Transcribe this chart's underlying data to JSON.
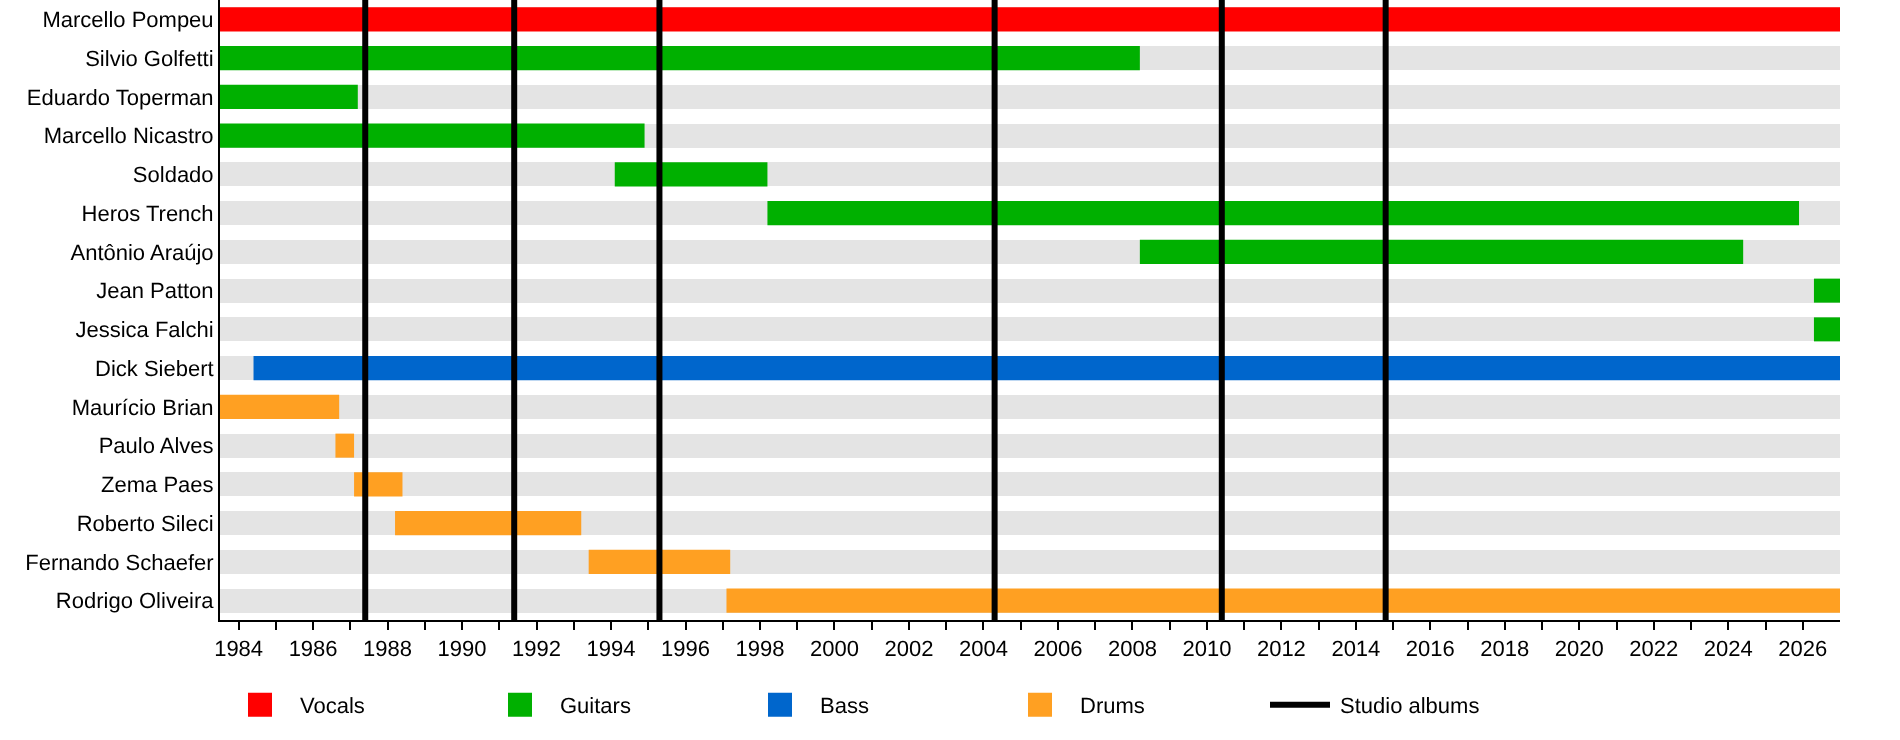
{
  "chart_data": {
    "type": "bar",
    "orientation": "horizontal",
    "categories": [
      "Marcello Pompeu",
      "Silvio Golfetti",
      "Eduardo Toperman",
      "Marcello Nicastro",
      "Soldado",
      "Heros Trench",
      "Antônio Araújo",
      "Jean Patton",
      "Jessica Falchi",
      "Dick Siebert",
      "Maurício Brian",
      "Paulo Alves",
      "Zema Paes",
      "Roberto Sileci",
      "Fernando Schaefer",
      "Rodrigo Oliveira"
    ],
    "series": [
      {
        "name": "Vocals",
        "color": "#ff0000",
        "base": [
          1983.5,
          null,
          null,
          null,
          null,
          null,
          null,
          null,
          null,
          null,
          null,
          null,
          null,
          null,
          null,
          null
        ],
        "values": [
          43.5,
          null,
          null,
          null,
          null,
          null,
          null,
          null,
          null,
          null,
          null,
          null,
          null,
          null,
          null,
          null
        ]
      },
      {
        "name": "Guitars",
        "color": "#00b000",
        "base": [
          null,
          1983.5,
          1983.5,
          1983.5,
          1994.1,
          1998.2,
          2008.2,
          2026.3,
          2026.3,
          null,
          null,
          null,
          null,
          null,
          null,
          null
        ],
        "values": [
          null,
          24.7,
          3.7,
          11.4,
          4.1,
          27.7,
          16.2,
          0.7,
          0.7,
          null,
          null,
          null,
          null,
          null,
          null,
          null
        ]
      },
      {
        "name": "Bass",
        "color": "#0066cc",
        "base": [
          null,
          null,
          null,
          null,
          null,
          null,
          null,
          null,
          null,
          1984.4,
          null,
          null,
          null,
          null,
          null,
          null
        ],
        "values": [
          null,
          null,
          null,
          null,
          null,
          null,
          null,
          null,
          null,
          42.6,
          null,
          null,
          null,
          null,
          null,
          null
        ]
      },
      {
        "name": "Drums",
        "color": "#ffa022",
        "base": [
          null,
          null,
          null,
          null,
          null,
          null,
          null,
          null,
          null,
          null,
          1983.5,
          1986.6,
          1987.1,
          1988.2,
          1993.4,
          1997.1
        ],
        "values": [
          null,
          null,
          null,
          null,
          null,
          null,
          null,
          null,
          null,
          null,
          3.2,
          0.5,
          1.3,
          5.0,
          3.8,
          29.9
        ]
      }
    ],
    "ref_lines": [
      {
        "axis": "x",
        "value": 1987.4,
        "label": "Studio albums",
        "color": "#000000"
      },
      {
        "axis": "x",
        "value": 1991.4,
        "color": "#000000"
      },
      {
        "axis": "x",
        "value": 1995.3,
        "color": "#000000"
      },
      {
        "axis": "x",
        "value": 2004.3,
        "color": "#000000"
      },
      {
        "axis": "x",
        "value": 2010.4,
        "color": "#000000"
      },
      {
        "axis": "x",
        "value": 2014.8,
        "color": "#000000"
      }
    ],
    "xlim": [
      1983.5,
      2027
    ],
    "xticks": [
      1984,
      {
        "value": 1985,
        "label": null
      },
      1986,
      {
        "value": 1987,
        "label": null
      },
      1988,
      {
        "value": 1989,
        "label": null
      },
      1990,
      {
        "value": 1991,
        "label": null
      },
      1992,
      {
        "value": 1993,
        "label": null
      },
      1994,
      {
        "value": 1995,
        "label": null
      },
      1996,
      {
        "value": 1997,
        "label": null
      },
      1998,
      {
        "value": 1999,
        "label": null
      },
      2000,
      {
        "value": 2001,
        "label": null
      },
      2002,
      {
        "value": 2003,
        "label": null
      },
      2004,
      {
        "value": 2005,
        "label": null
      },
      2006,
      {
        "value": 2007,
        "label": null
      },
      2008,
      {
        "value": 2009,
        "label": null
      },
      2010,
      {
        "value": 2011,
        "label": null
      },
      2012,
      {
        "value": 2013,
        "label": null
      },
      2014,
      {
        "value": 2015,
        "label": null
      },
      2016,
      {
        "value": 2017,
        "label": null
      },
      2018,
      {
        "value": 2019,
        "label": null
      },
      2020,
      {
        "value": 2021,
        "label": null
      },
      2022,
      {
        "value": 2023,
        "label": null
      },
      2024,
      {
        "value": 2025,
        "label": null
      },
      2026
    ],
    "grid": "y",
    "legend": "bottom"
  }
}
